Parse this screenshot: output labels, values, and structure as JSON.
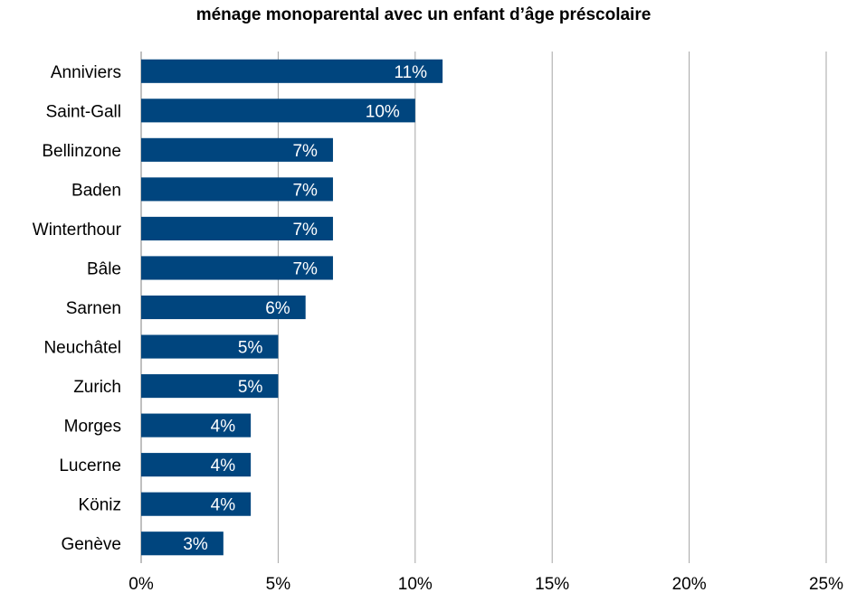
{
  "chart_data": {
    "type": "bar",
    "orientation": "horizontal",
    "title": "ménage monoparental avec un enfant d’âge préscolaire",
    "categories": [
      "Anniviers",
      "Saint-Gall",
      "Bellinzone",
      "Baden",
      "Winterthour",
      "Bâle",
      "Sarnen",
      "Neuchâtel",
      "Zurich",
      "Morges",
      "Lucerne",
      "Köniz",
      "Genève"
    ],
    "values": [
      11,
      10,
      7,
      7,
      7,
      7,
      6,
      5,
      5,
      4,
      4,
      4,
      3
    ],
    "data_labels": [
      "11%",
      "10%",
      "7%",
      "7%",
      "7%",
      "7%",
      "6%",
      "5%",
      "5%",
      "4%",
      "4%",
      "4%",
      "3%"
    ],
    "xlim": [
      0,
      25
    ],
    "xticks": [
      0,
      5,
      10,
      15,
      20,
      25
    ],
    "xtick_labels": [
      "0%",
      "5%",
      "10%",
      "15%",
      "20%",
      "25%"
    ],
    "grid": true,
    "legend": "none",
    "colors": {
      "bar": "#00457e",
      "grid": "#a6a6a6",
      "data_label": "#ffffff"
    }
  }
}
